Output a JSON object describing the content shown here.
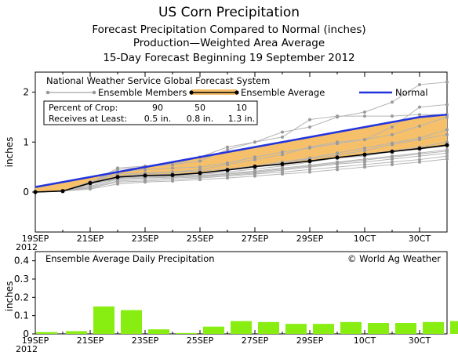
{
  "title": "US Corn Precipitation",
  "subtitles": [
    "Forecast Precipitation Compared to Normal (inches)",
    "Production—Weighted Area Average",
    "15-Day Forecast Beginning 19 September 2012"
  ],
  "chart_data": [
    {
      "type": "line",
      "x": [
        "19SEP",
        "20SEP",
        "21SEP",
        "22SEP",
        "23SEP",
        "24SEP",
        "25SEP",
        "26SEP",
        "27SEP",
        "28SEP",
        "29SEP",
        "30SEP",
        "1OCT",
        "2OCT",
        "3OCT",
        "4OCT"
      ],
      "xtick_labels": [
        "19SEP",
        "21SEP",
        "23SEP",
        "25SEP",
        "27SEP",
        "29SEP",
        "10CT",
        "30CT"
      ],
      "xtick_year": "2012",
      "ylabel": "inches",
      "ylim": [
        -0.8,
        2.4
      ],
      "yticks": [
        "0",
        "1",
        "2"
      ],
      "header": "National Weather Service Global Forecast System",
      "legend": {
        "members": "Ensemble Members",
        "average": "Ensemble Average",
        "normal": "Normal"
      },
      "crop_table": {
        "row1_label": "Percent of Crop:",
        "row2_label": "Receives at Least:",
        "percents": [
          "90",
          "50",
          "10"
        ],
        "amounts": [
          "0.5 in.",
          "0.8 in.",
          "1.3 in."
        ]
      },
      "series": [
        {
          "name": "Normal",
          "color": "#2233dd",
          "values": [
            0.1,
            0.2,
            0.3,
            0.4,
            0.5,
            0.6,
            0.7,
            0.8,
            0.9,
            1.0,
            1.1,
            1.2,
            1.3,
            1.4,
            1.5,
            1.55
          ]
        },
        {
          "name": "Ensemble Average",
          "color": "#000000",
          "values": [
            0.0,
            0.02,
            0.18,
            0.3,
            0.33,
            0.34,
            0.38,
            0.44,
            0.51,
            0.56,
            0.62,
            0.69,
            0.75,
            0.81,
            0.87,
            0.94
          ]
        }
      ],
      "members": [
        [
          0.0,
          0.02,
          0.18,
          0.48,
          0.52,
          0.55,
          0.7,
          0.9,
          1.0,
          1.1,
          1.45,
          1.52,
          1.52,
          1.52,
          1.55,
          1.55
        ],
        [
          0.0,
          0.02,
          0.18,
          0.45,
          0.5,
          0.55,
          0.62,
          0.85,
          1.0,
          1.2,
          1.3,
          1.5,
          1.6,
          1.8,
          2.15,
          2.2
        ],
        [
          0.0,
          0.02,
          0.15,
          0.32,
          0.36,
          0.4,
          0.45,
          0.55,
          0.65,
          0.75,
          0.9,
          1.0,
          1.05,
          1.3,
          1.7,
          1.75
        ],
        [
          0.0,
          0.02,
          0.2,
          0.4,
          0.45,
          0.48,
          0.5,
          0.58,
          0.7,
          0.8,
          0.88,
          0.97,
          1.05,
          1.15,
          1.32,
          1.5
        ],
        [
          0.0,
          0.02,
          0.18,
          0.32,
          0.34,
          0.36,
          0.38,
          0.44,
          0.5,
          0.58,
          0.66,
          0.74,
          0.83,
          0.95,
          1.05,
          1.15
        ],
        [
          0.0,
          0.02,
          0.18,
          0.3,
          0.33,
          0.35,
          0.38,
          0.44,
          0.5,
          0.56,
          0.62,
          0.68,
          0.76,
          0.82,
          0.9,
          1.0
        ],
        [
          0.0,
          0.02,
          0.15,
          0.28,
          0.3,
          0.32,
          0.35,
          0.4,
          0.46,
          0.52,
          0.6,
          0.68,
          0.72,
          0.82,
          0.86,
          0.92
        ],
        [
          0.0,
          0.02,
          0.12,
          0.25,
          0.28,
          0.3,
          0.33,
          0.37,
          0.42,
          0.48,
          0.54,
          0.6,
          0.66,
          0.72,
          0.78,
          0.85
        ],
        [
          0.0,
          0.02,
          0.1,
          0.22,
          0.25,
          0.28,
          0.3,
          0.34,
          0.38,
          0.44,
          0.5,
          0.56,
          0.6,
          0.66,
          0.72,
          0.78
        ],
        [
          0.0,
          0.02,
          0.08,
          0.2,
          0.22,
          0.25,
          0.28,
          0.32,
          0.36,
          0.4,
          0.45,
          0.5,
          0.55,
          0.6,
          0.65,
          0.72
        ],
        [
          0.0,
          0.02,
          0.06,
          0.16,
          0.2,
          0.22,
          0.25,
          0.28,
          0.32,
          0.36,
          0.4,
          0.45,
          0.5,
          0.55,
          0.6,
          0.66
        ],
        [
          0.0,
          0.02,
          0.2,
          0.36,
          0.38,
          0.4,
          0.42,
          0.46,
          0.52,
          0.6,
          0.68,
          0.78,
          0.88,
          0.98,
          1.08,
          1.25
        ],
        [
          0.0,
          0.02,
          0.16,
          0.26,
          0.28,
          0.3,
          0.32,
          0.36,
          0.4,
          0.46,
          0.52,
          0.58,
          0.64,
          0.7,
          0.76,
          0.82
        ]
      ]
    },
    {
      "type": "bar",
      "title": "Ensemble Average Daily Precipitation",
      "credit": "© World Ag Weather",
      "ylabel": "inches",
      "ylim": [
        0,
        0.45
      ],
      "yticks": [
        "0",
        "0.1",
        "0.2",
        "0.3",
        "0.4"
      ],
      "categories": [
        "19SEP",
        "20SEP",
        "21SEP",
        "22SEP",
        "23SEP",
        "24SEP",
        "25SEP",
        "26SEP",
        "27SEP",
        "28SEP",
        "29SEP",
        "30SEP",
        "1OCT",
        "2OCT",
        "3OCT",
        "4OCT"
      ],
      "values": [
        0.01,
        0.015,
        0.15,
        0.13,
        0.025,
        0.005,
        0.04,
        0.07,
        0.065,
        0.055,
        0.055,
        0.065,
        0.06,
        0.06,
        0.065,
        0.07
      ],
      "color": "#88ee11"
    }
  ],
  "colors": {
    "band": "#f6c06a",
    "member": "#b4b4b4",
    "normal": "#2233dd",
    "bar": "#88ee11"
  }
}
